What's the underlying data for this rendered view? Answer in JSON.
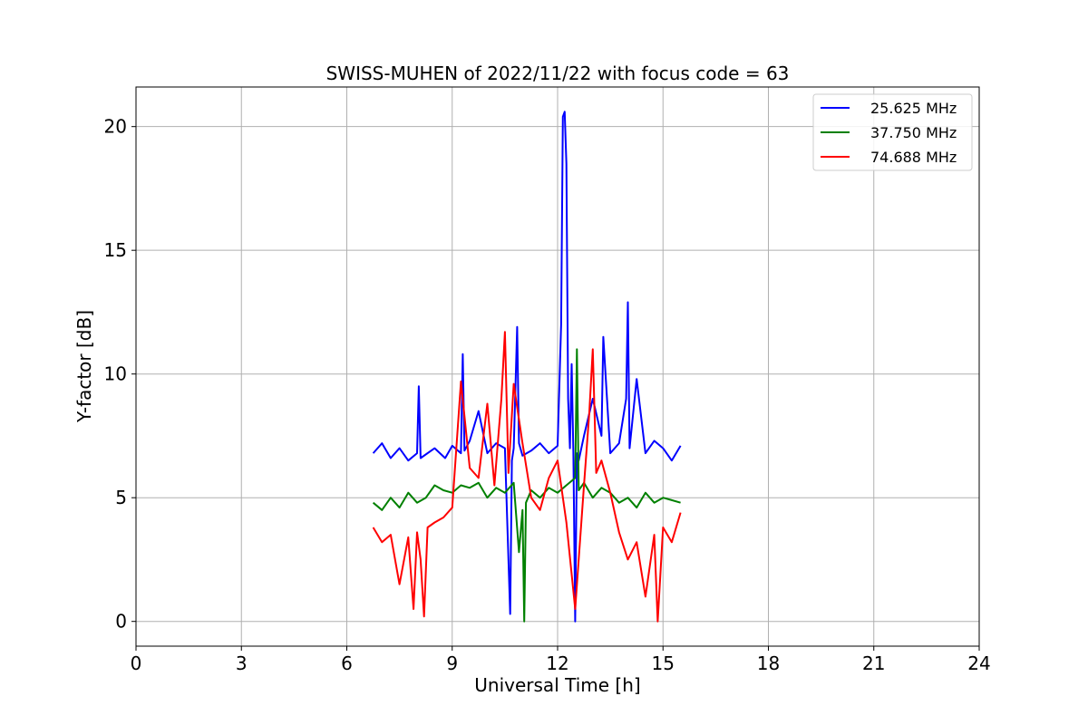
{
  "chart_data": {
    "type": "line",
    "title": "SWISS-MUHEN of 2022/11/22 with focus code = 63",
    "xlabel": "Universal Time [h]",
    "ylabel": "Y-factor [dB]",
    "xlim": [
      0,
      24
    ],
    "ylim": [
      -1.0,
      21.6
    ],
    "xticks": [
      0,
      3,
      6,
      9,
      12,
      15,
      18,
      21,
      24
    ],
    "yticks": [
      0,
      5,
      10,
      15,
      20
    ],
    "grid": true,
    "legend_position": "top-right",
    "series": [
      {
        "name": "25.625 MHz",
        "color": "#0000ff",
        "x": [
          6.75,
          7.0,
          7.25,
          7.5,
          7.75,
          8.0,
          8.05,
          8.1,
          8.5,
          8.8,
          9.0,
          9.25,
          9.3,
          9.35,
          9.5,
          9.75,
          10.0,
          10.25,
          10.5,
          10.65,
          10.7,
          10.75,
          10.85,
          10.9,
          11.0,
          11.25,
          11.5,
          11.75,
          12.0,
          12.1,
          12.15,
          12.2,
          12.25,
          12.3,
          12.35,
          12.4,
          12.45,
          12.5,
          12.55,
          12.6,
          12.75,
          13.0,
          13.25,
          13.3,
          13.5,
          13.75,
          13.95,
          14.0,
          14.05,
          14.25,
          14.5,
          14.75,
          15.0,
          15.25,
          15.5
        ],
        "y": [
          6.8,
          7.2,
          6.6,
          7.0,
          6.5,
          6.8,
          9.5,
          6.6,
          7.0,
          6.6,
          7.1,
          6.8,
          10.8,
          6.9,
          7.3,
          8.5,
          6.8,
          7.2,
          7.0,
          0.3,
          6.5,
          7.0,
          11.9,
          7.2,
          6.7,
          6.9,
          7.2,
          6.8,
          7.1,
          12.0,
          20.4,
          20.6,
          18.5,
          9.0,
          7.0,
          10.4,
          6.8,
          0.0,
          6.8,
          6.5,
          7.5,
          9.0,
          7.5,
          11.5,
          6.8,
          7.2,
          9.0,
          12.9,
          7.0,
          9.8,
          6.8,
          7.3,
          7.0,
          6.5,
          7.1
        ]
      },
      {
        "name": "37.750 MHz",
        "color": "#008000",
        "x": [
          6.75,
          7.0,
          7.25,
          7.5,
          7.75,
          8.0,
          8.25,
          8.5,
          8.75,
          9.0,
          9.25,
          9.5,
          9.75,
          10.0,
          10.25,
          10.5,
          10.75,
          10.9,
          11.0,
          11.05,
          11.1,
          11.25,
          11.5,
          11.75,
          12.0,
          12.25,
          12.5,
          12.55,
          12.6,
          12.75,
          13.0,
          13.25,
          13.5,
          13.75,
          14.0,
          14.25,
          14.5,
          14.75,
          15.0,
          15.25,
          15.5
        ],
        "y": [
          4.8,
          4.5,
          5.0,
          4.6,
          5.2,
          4.8,
          5.0,
          5.5,
          5.3,
          5.2,
          5.5,
          5.4,
          5.6,
          5.0,
          5.4,
          5.2,
          5.6,
          2.8,
          4.5,
          0.0,
          4.8,
          5.3,
          5.0,
          5.4,
          5.2,
          5.5,
          5.8,
          11.0,
          5.3,
          5.6,
          5.0,
          5.4,
          5.2,
          4.8,
          5.0,
          4.6,
          5.2,
          4.8,
          5.0,
          4.9,
          4.8
        ]
      },
      {
        "name": "74.688 MHz",
        "color": "#ff0000",
        "x": [
          6.75,
          7.0,
          7.25,
          7.5,
          7.75,
          7.9,
          8.0,
          8.1,
          8.2,
          8.3,
          8.5,
          8.75,
          9.0,
          9.25,
          9.5,
          9.75,
          10.0,
          10.2,
          10.4,
          10.5,
          10.6,
          10.75,
          11.0,
          11.25,
          11.5,
          11.75,
          12.0,
          12.25,
          12.5,
          12.75,
          12.9,
          13.0,
          13.1,
          13.25,
          13.5,
          13.75,
          14.0,
          14.25,
          14.5,
          14.75,
          14.85,
          15.0,
          15.25,
          15.5
        ],
        "y": [
          3.8,
          3.2,
          3.5,
          1.5,
          3.4,
          0.5,
          3.6,
          2.5,
          0.2,
          3.8,
          4.0,
          4.2,
          4.6,
          9.7,
          6.2,
          5.8,
          8.8,
          5.5,
          9.0,
          11.7,
          6.0,
          9.6,
          7.2,
          5.0,
          4.5,
          5.8,
          6.5,
          4.0,
          0.5,
          5.5,
          8.4,
          11.0,
          6.0,
          6.5,
          5.2,
          3.6,
          2.5,
          3.2,
          1.0,
          3.5,
          0.0,
          3.8,
          3.2,
          4.4
        ]
      }
    ]
  }
}
